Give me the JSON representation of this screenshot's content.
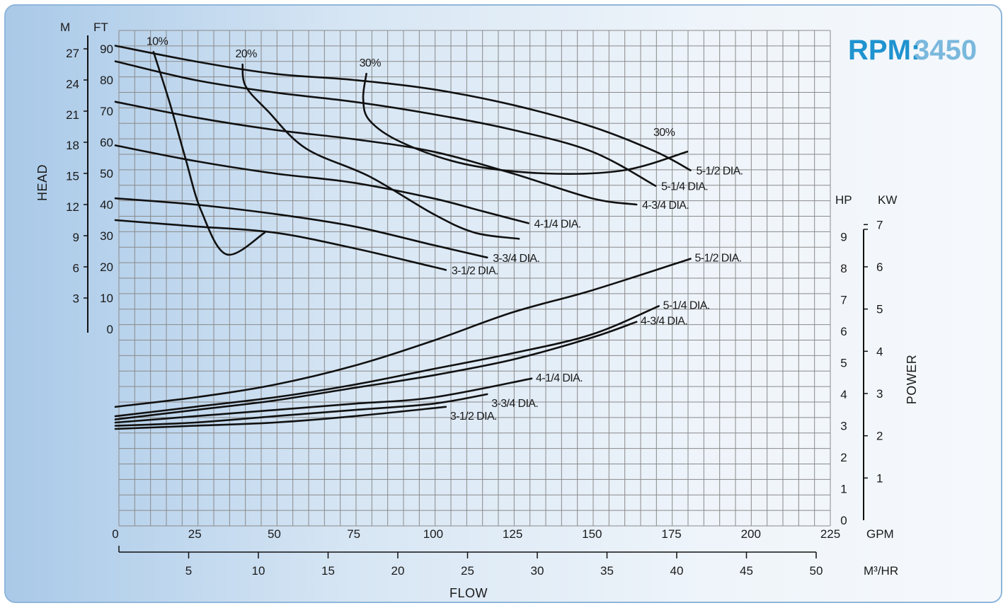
{
  "chart_data": {
    "type": "line",
    "title": "",
    "rpm": {
      "label": "RPM:",
      "value": "3450"
    },
    "flow_axis": {
      "title": "FLOW",
      "gpm": {
        "unit": "GPM",
        "ticks": [
          0,
          25,
          50,
          75,
          100,
          125,
          150,
          175,
          200,
          225
        ],
        "range": [
          0,
          225
        ]
      },
      "m3hr": {
        "unit": "M³/HR",
        "ticks": [
          5,
          10,
          15,
          20,
          25,
          30,
          35,
          40,
          45,
          50
        ]
      }
    },
    "head_axis": {
      "title": "HEAD",
      "ft": {
        "unit": "FT",
        "ticks": [
          0,
          10,
          20,
          30,
          40,
          50,
          60,
          70,
          80,
          90
        ]
      },
      "m": {
        "unit": "M",
        "ticks": [
          3,
          6,
          9,
          12,
          15,
          18,
          21,
          24,
          27
        ]
      }
    },
    "power_axis": {
      "title": "POWER",
      "hp": {
        "unit": "HP",
        "ticks": [
          0,
          1,
          2,
          3,
          4,
          5,
          6,
          7,
          8,
          9
        ],
        "range": [
          0,
          9
        ]
      },
      "kw": {
        "unit": "KW",
        "ticks": [
          1,
          2,
          3,
          4,
          5,
          6,
          7
        ]
      }
    },
    "grid": true,
    "head_curves": [
      {
        "name": "5-1/2 DIA.",
        "x": [
          0,
          25,
          50,
          75,
          100,
          125,
          150,
          170,
          181
        ],
        "y": [
          91,
          86,
          82,
          80,
          77,
          72,
          65,
          57,
          51
        ]
      },
      {
        "name": "5-1/4 DIA.",
        "x": [
          0,
          25,
          50,
          75,
          100,
          125,
          150,
          170
        ],
        "y": [
          86,
          80,
          76,
          73,
          69,
          64,
          57,
          46
        ]
      },
      {
        "name": "4-3/4 DIA.",
        "x": [
          0,
          25,
          50,
          75,
          100,
          125,
          150,
          164
        ],
        "y": [
          73,
          68,
          64,
          61,
          57,
          50,
          42,
          40
        ]
      },
      {
        "name": "4-1/4 DIA.",
        "x": [
          0,
          25,
          50,
          75,
          100,
          115,
          130
        ],
        "y": [
          59,
          54,
          50,
          47,
          42,
          38,
          34
        ]
      },
      {
        "name": "3-3/4 DIA.",
        "x": [
          0,
          25,
          50,
          75,
          100,
          117
        ],
        "y": [
          42,
          40,
          37,
          33,
          27,
          23
        ]
      },
      {
        "name": "3-1/2 DIA.",
        "x": [
          0,
          25,
          50,
          75,
          100,
          104
        ],
        "y": [
          35,
          33,
          31,
          26,
          20,
          19
        ]
      }
    ],
    "efficiency_curves": [
      {
        "name": "10%",
        "x": [
          12,
          17,
          22,
          27,
          35,
          47
        ],
        "y": [
          89,
          73,
          55,
          38,
          24,
          31
        ]
      },
      {
        "name": "20%",
        "x": [
          40,
          41,
          48,
          60,
          80,
          100,
          113,
          127
        ],
        "y": [
          85,
          78,
          70,
          58,
          49,
          37,
          31,
          29
        ]
      },
      {
        "name": "30%",
        "x": [
          79,
          78,
          80,
          90,
          110,
          135,
          160,
          180
        ],
        "y": [
          82,
          74,
          67,
          60,
          53,
          50,
          51,
          57
        ]
      }
    ],
    "power_curves": [
      {
        "name": "5-1/2 DIA.",
        "x": [
          0,
          25,
          50,
          75,
          100,
          125,
          150,
          181
        ],
        "y": [
          3.6,
          3.9,
          4.3,
          4.9,
          5.7,
          6.6,
          7.3,
          8.3
        ]
      },
      {
        "name": "5-1/4 DIA.",
        "x": [
          0,
          25,
          50,
          75,
          100,
          125,
          150,
          171
        ],
        "y": [
          3.3,
          3.6,
          3.9,
          4.3,
          4.8,
          5.3,
          5.9,
          6.8
        ]
      },
      {
        "name": "4-3/4 DIA.",
        "x": [
          0,
          25,
          50,
          75,
          100,
          125,
          150,
          164
        ],
        "y": [
          3.2,
          3.5,
          3.8,
          4.2,
          4.6,
          5.1,
          5.8,
          6.3
        ]
      },
      {
        "name": "4-1/4 DIA.",
        "x": [
          0,
          25,
          50,
          75,
          100,
          131
        ],
        "y": [
          3.1,
          3.3,
          3.5,
          3.7,
          3.9,
          4.5
        ]
      },
      {
        "name": "3-3/4 DIA.",
        "x": [
          0,
          25,
          50,
          75,
          100,
          117
        ],
        "y": [
          3.0,
          3.1,
          3.3,
          3.5,
          3.7,
          4.0
        ]
      },
      {
        "name": "3-1/2 DIA.",
        "x": [
          0,
          25,
          50,
          75,
          104
        ],
        "y": [
          2.9,
          3.0,
          3.1,
          3.3,
          3.6
        ]
      }
    ]
  }
}
